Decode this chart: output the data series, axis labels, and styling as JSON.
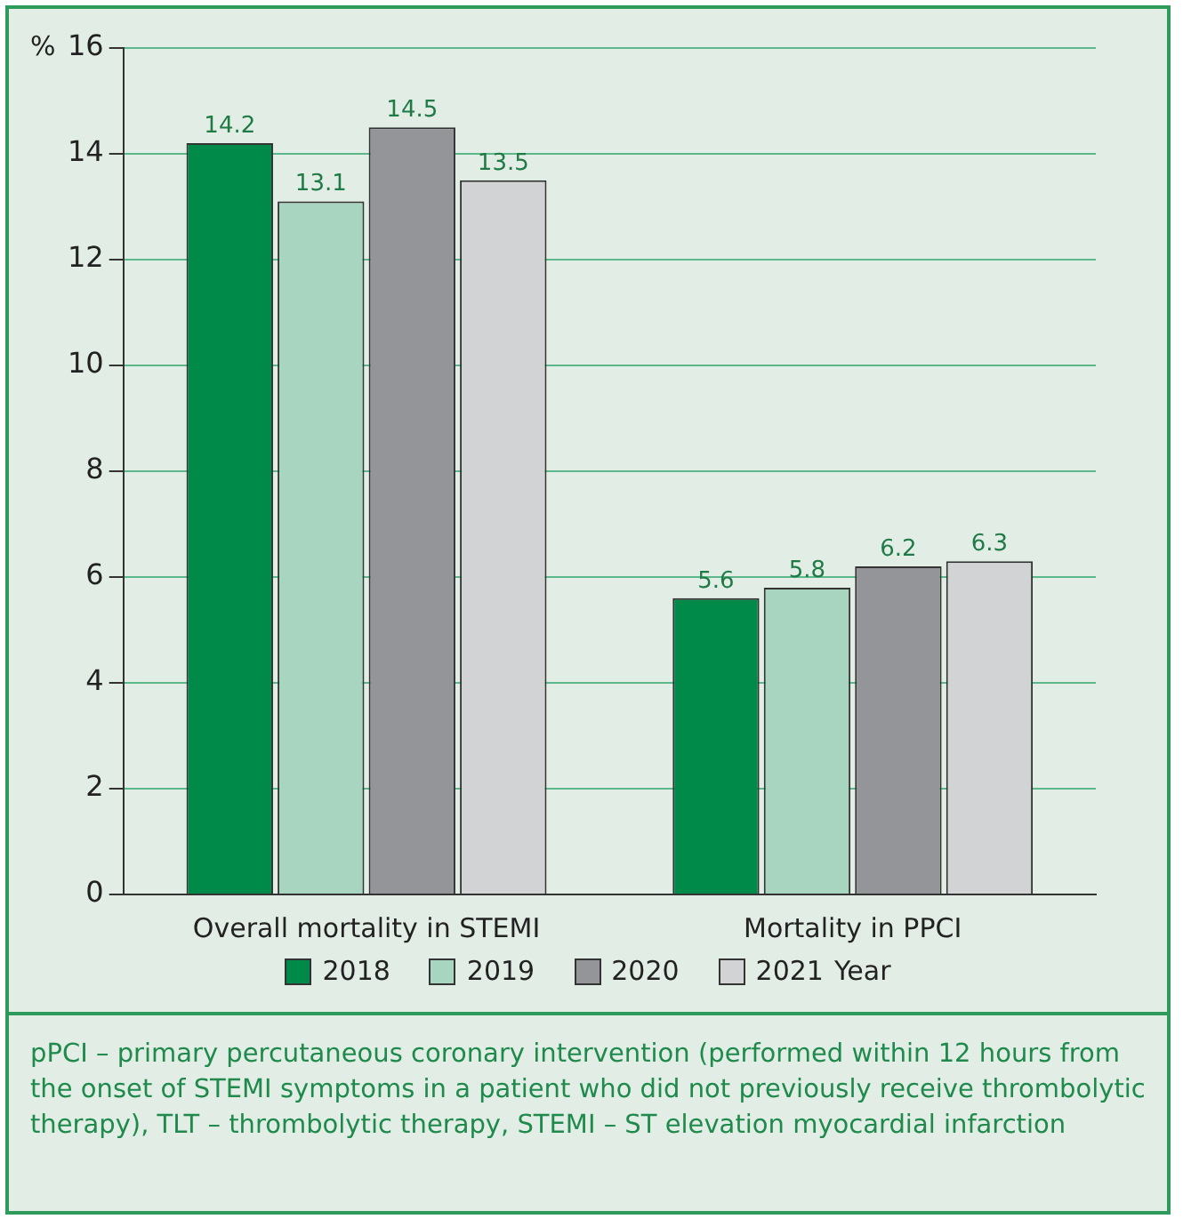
{
  "chart_data": {
    "type": "bar",
    "ylabel": "%",
    "categories": [
      "Overall mortality in STEMI",
      "Mortality in PPCI"
    ],
    "series": [
      {
        "name": "2018",
        "color": "#008a4a",
        "values": [
          14.2,
          5.6
        ]
      },
      {
        "name": "2019",
        "color": "#a8d5bf",
        "values": [
          13.1,
          5.8
        ]
      },
      {
        "name": "2020",
        "color": "#939598",
        "values": [
          14.5,
          6.2
        ]
      },
      {
        "name": "2021",
        "color": "#d1d3d4",
        "values": [
          13.5,
          6.3
        ]
      }
    ],
    "legend_title": "Year",
    "legend": "bottom",
    "ylim": [
      0,
      16
    ],
    "yticks": [
      0,
      2,
      4,
      6,
      8,
      10,
      12,
      14,
      16
    ],
    "grid": "y",
    "data_labels": true,
    "annotations": [
      "pPCI – primary percutaneous coronary intervention (performed within 12 hours from the onset of STEMI symptoms in a patient who did not previously receive thrombolytic therapy), TLT – thrombolytic therapy, STEMI – ST elevation myocardial infarction"
    ]
  }
}
